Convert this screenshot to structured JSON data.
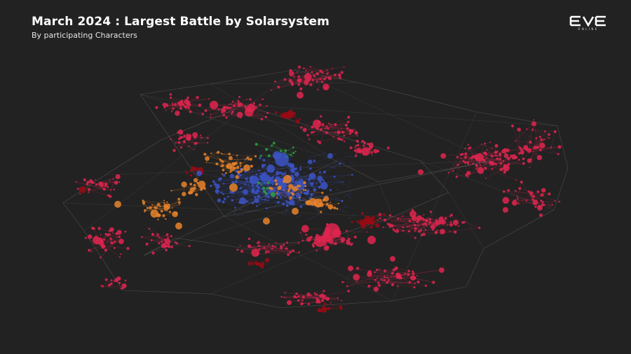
{
  "header": {
    "title": "March 2024 : Largest Battle by Solarsystem",
    "subtitle": "By participating Characters"
  },
  "logo": {
    "text": "EVE",
    "subtext": "ONLINE",
    "icon": "eve-online-logo"
  },
  "colors": {
    "background": "#222222",
    "link": "#555555",
    "node_crimson": "#e0254f",
    "node_darkred": "#9a0a14",
    "node_orange": "#e8832a",
    "node_blue": "#3b53c4",
    "node_green": "#2f9c3f"
  }
}
